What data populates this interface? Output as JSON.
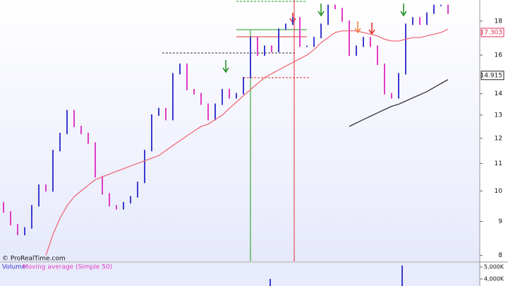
{
  "chart_data": {
    "type": "candlestick",
    "watermark": "© ProRealTime.com",
    "log_scale": true,
    "ylim": [
      7.84,
      19.36
    ],
    "yticks": [
      8,
      9,
      10,
      11,
      12,
      13,
      14,
      16,
      18
    ],
    "up_color": "#3a3ad0",
    "down_color": "#e03cc4",
    "open": [
      9.6,
      9.3,
      8.9,
      8.6,
      8.8,
      9.5,
      10.2,
      10.0,
      11.5,
      12.2,
      13.2,
      12.5,
      12.2,
      11.8,
      10.5,
      9.9,
      9.5,
      9.4,
      9.6,
      9.8,
      10.3,
      11.5,
      13.0,
      13.3,
      12.8,
      15.0,
      15.5,
      14.2,
      14.0,
      13.5,
      12.8,
      13.5,
      14.2,
      13.8,
      14.0,
      14.8,
      17.0,
      16.0,
      16.5,
      16.2,
      17.5,
      17.8,
      18.2,
      16.5,
      16.5,
      17.0,
      17.8,
      19.0,
      18.8,
      18.0,
      16.0,
      16.5,
      17.0,
      16.5,
      15.5,
      14.0,
      13.8,
      15.0,
      17.8,
      18.2,
      17.8,
      18.5,
      19.0,
      19.0
    ],
    "close": [
      9.3,
      8.9,
      8.6,
      8.8,
      9.5,
      10.2,
      10.0,
      11.5,
      12.2,
      13.2,
      12.5,
      12.2,
      11.8,
      10.5,
      9.9,
      9.5,
      9.4,
      9.6,
      9.8,
      10.3,
      11.5,
      13.0,
      13.3,
      12.8,
      15.0,
      15.5,
      14.2,
      14.0,
      13.5,
      12.8,
      13.5,
      14.2,
      13.8,
      14.0,
      14.8,
      17.0,
      16.0,
      16.5,
      16.2,
      17.5,
      17.8,
      18.2,
      16.5,
      16.5,
      17.0,
      17.8,
      19.0,
      18.8,
      18.0,
      16.0,
      16.5,
      17.0,
      16.5,
      15.5,
      14.0,
      13.8,
      15.0,
      17.8,
      18.2,
      17.8,
      18.5,
      19.0,
      19.0,
      18.5
    ],
    "series": [
      {
        "color": "#f06070",
        "values": [
          null,
          null,
          null,
          null,
          null,
          null,
          8.0,
          8.6,
          9.1,
          9.5,
          9.8,
          10.0,
          10.2,
          10.4,
          10.5,
          10.6,
          10.7,
          10.8,
          10.9,
          11.0,
          11.1,
          11.2,
          11.3,
          11.5,
          11.7,
          11.9,
          12.1,
          12.3,
          12.5,
          12.6,
          12.8,
          13.0,
          13.3,
          13.6,
          13.9,
          14.2,
          14.5,
          14.8,
          15.0,
          15.2,
          15.4,
          15.6,
          15.8,
          16.0,
          16.3,
          16.7,
          17.0,
          17.3,
          17.4,
          17.4,
          17.4,
          17.3,
          17.2,
          17.1,
          16.9,
          16.8,
          16.8,
          16.9,
          17.0,
          17.0,
          17.1,
          17.2,
          17.3,
          17.5
        ]
      },
      {
        "color": "#222222",
        "values": [
          null,
          null,
          null,
          null,
          null,
          null,
          null,
          null,
          null,
          null,
          null,
          null,
          null,
          null,
          null,
          null,
          null,
          null,
          null,
          null,
          null,
          null,
          null,
          null,
          null,
          null,
          null,
          null,
          null,
          null,
          null,
          null,
          null,
          null,
          null,
          null,
          null,
          null,
          null,
          null,
          null,
          null,
          null,
          null,
          null,
          null,
          null,
          null,
          null,
          12.5,
          12.65,
          12.8,
          12.95,
          13.1,
          13.25,
          13.4,
          13.5,
          13.65,
          13.8,
          13.95,
          14.1,
          14.3,
          14.5,
          14.7
        ]
      }
    ],
    "price_labels": [
      {
        "value": 17.303,
        "label": "17.303",
        "color": "#e03050"
      },
      {
        "value": 14.915,
        "label": "14.915",
        "color": "#222222"
      }
    ],
    "volume_panel": {
      "label": "Volume",
      "indicator_label": "Moving average (Simple 50)",
      "ylim": [
        3412000,
        5353000
      ],
      "yticks": [
        {
          "value": 5000000,
          "label": "5,000K"
        },
        {
          "value": 4000000,
          "label": "4,000K"
        }
      ]
    }
  }
}
